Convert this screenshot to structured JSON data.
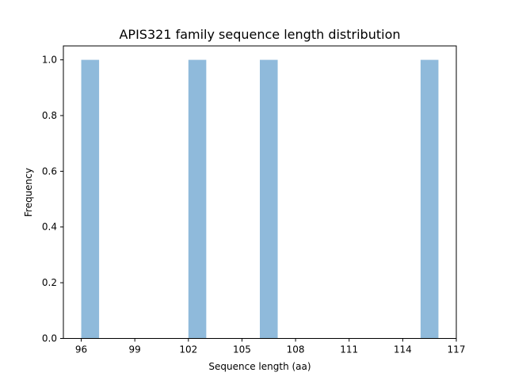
{
  "chart_data": {
    "type": "bar",
    "title": "APIS321 family sequence length distribution",
    "xlabel": "Sequence length (aa)",
    "ylabel": "Frequency",
    "xlim": [
      95.0,
      117.0
    ],
    "ylim": [
      0.0,
      1.05
    ],
    "x_ticks": [
      96,
      99,
      102,
      105,
      108,
      111,
      114,
      117
    ],
    "y_ticks": [
      "0.0",
      "0.2",
      "0.4",
      "0.6",
      "0.8",
      "1.0"
    ],
    "bins": [
      {
        "x_start": 96.0,
        "x_end": 97.0,
        "value": 1.0
      },
      {
        "x_start": 102.0,
        "x_end": 103.0,
        "value": 1.0
      },
      {
        "x_start": 106.0,
        "x_end": 107.0,
        "value": 1.0
      },
      {
        "x_start": 115.0,
        "x_end": 116.0,
        "value": 1.0
      }
    ],
    "bar_color": "#8fbadb",
    "grid": false,
    "legend": "none"
  }
}
